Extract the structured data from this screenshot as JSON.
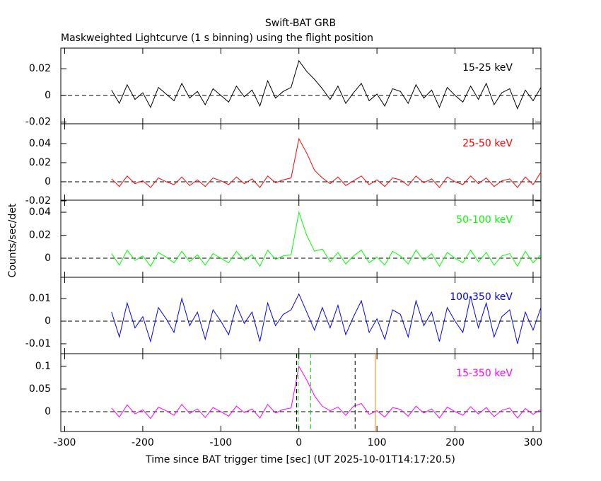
{
  "title": "Swift-BAT GRB",
  "subtitle": "Maskweighted Lightcurve (1 s binning) using the flight position",
  "x_label": "Time since BAT trigger time [sec] (UT 2025-10-01T14:17:20.5)",
  "y_label": "Counts/sec/det",
  "chart_data": [
    {
      "type": "line",
      "label": "15-25 keV",
      "color": "#000000",
      "x": [
        -240,
        -230,
        -220,
        -210,
        -200,
        -190,
        -180,
        -170,
        -160,
        -150,
        -140,
        -130,
        -120,
        -110,
        -100,
        -90,
        -80,
        -70,
        -60,
        -50,
        -40,
        -30,
        -20,
        -10,
        0,
        10,
        20,
        30,
        40,
        50,
        60,
        70,
        80,
        90,
        100,
        110,
        120,
        130,
        140,
        150,
        160,
        170,
        180,
        190,
        200,
        210,
        220,
        230,
        240,
        250,
        260,
        270,
        280,
        290,
        300,
        310
      ],
      "values": [
        0.004,
        -0.006,
        0.008,
        -0.003,
        0.002,
        -0.009,
        0.006,
        0.001,
        -0.004,
        0.009,
        -0.002,
        0.003,
        -0.007,
        0.005,
        0.0,
        -0.005,
        0.007,
        -0.001,
        0.004,
        -0.008,
        0.011,
        -0.002,
        0.003,
        0.006,
        0.026,
        0.018,
        0.012,
        0.005,
        -0.003,
        0.007,
        -0.006,
        0.002,
        0.009,
        -0.004,
        0.001,
        -0.008,
        0.005,
        0.003,
        -0.006,
        0.008,
        -0.002,
        0.004,
        -0.009,
        0.006,
        0.0,
        -0.005,
        0.007,
        -0.003,
        0.009,
        -0.007,
        0.002,
        0.005,
        -0.01,
        0.004,
        -0.004,
        0.006
      ],
      "xlim": [
        -305,
        310
      ],
      "xticks": [
        -300,
        -200,
        -100,
        0,
        100,
        200,
        300
      ],
      "ylim": [
        -0.0213,
        0.0355
      ],
      "yticks": [
        -0.02,
        0,
        0.02
      ],
      "hline": 0
    },
    {
      "type": "line",
      "label": "25-50 keV",
      "color": "#ff0000",
      "x": [
        -240,
        -230,
        -220,
        -210,
        -200,
        -190,
        -180,
        -170,
        -160,
        -150,
        -140,
        -130,
        -120,
        -110,
        -100,
        -90,
        -80,
        -70,
        -60,
        -50,
        -40,
        -30,
        -20,
        -10,
        0,
        10,
        20,
        30,
        40,
        50,
        60,
        70,
        80,
        90,
        100,
        110,
        120,
        130,
        140,
        150,
        160,
        170,
        180,
        190,
        200,
        210,
        220,
        230,
        240,
        250,
        260,
        270,
        280,
        290,
        300,
        310
      ],
      "values": [
        0.003,
        -0.005,
        0.006,
        -0.002,
        0.001,
        -0.006,
        0.004,
        0.0,
        -0.003,
        0.005,
        -0.004,
        0.002,
        -0.005,
        0.004,
        0.001,
        -0.003,
        0.005,
        -0.002,
        0.003,
        -0.006,
        0.006,
        -0.001,
        0.002,
        0.004,
        0.045,
        0.03,
        0.012,
        0.004,
        -0.002,
        0.005,
        -0.004,
        0.001,
        0.006,
        -0.003,
        0.002,
        -0.005,
        0.004,
        0.002,
        -0.004,
        0.006,
        -0.001,
        0.003,
        -0.006,
        0.005,
        0.0,
        -0.003,
        0.006,
        -0.002,
        0.004,
        -0.005,
        0.001,
        0.003,
        -0.006,
        0.005,
        -0.003,
        0.01
      ],
      "xlim": [
        -305,
        310
      ],
      "xticks": [
        -300,
        -200,
        -100,
        0,
        100,
        200,
        300
      ],
      "ylim": [
        -0.0193,
        0.0607
      ],
      "yticks": [
        -0.02,
        0,
        0.02,
        0.04
      ],
      "hline": 0
    },
    {
      "type": "line",
      "label": "50-100 keV",
      "color": "#00ff00",
      "x": [
        -240,
        -230,
        -220,
        -210,
        -200,
        -190,
        -180,
        -170,
        -160,
        -150,
        -140,
        -130,
        -120,
        -110,
        -100,
        -90,
        -80,
        -70,
        -60,
        -50,
        -40,
        -30,
        -20,
        -10,
        0,
        10,
        20,
        30,
        40,
        50,
        60,
        70,
        80,
        90,
        100,
        110,
        120,
        130,
        140,
        150,
        160,
        170,
        180,
        190,
        200,
        210,
        220,
        230,
        240,
        250,
        260,
        270,
        280,
        290,
        300,
        310
      ],
      "values": [
        0.004,
        -0.006,
        0.007,
        -0.002,
        0.002,
        -0.007,
        0.005,
        0.001,
        -0.004,
        0.006,
        -0.003,
        0.003,
        -0.006,
        0.004,
        0.0,
        -0.004,
        0.006,
        -0.002,
        0.003,
        -0.007,
        0.007,
        -0.001,
        0.002,
        0.003,
        0.04,
        0.02,
        0.006,
        0.008,
        -0.003,
        0.005,
        -0.005,
        0.002,
        0.007,
        -0.004,
        0.001,
        -0.006,
        0.006,
        0.002,
        -0.005,
        0.007,
        -0.002,
        0.004,
        -0.007,
        0.005,
        0.0,
        -0.004,
        0.007,
        -0.003,
        0.005,
        -0.006,
        0.002,
        0.004,
        -0.007,
        0.006,
        -0.004,
        0.003
      ],
      "xlim": [
        -305,
        310
      ],
      "xticks": [
        -300,
        -200,
        -100,
        0,
        100,
        200,
        300
      ],
      "ylim": [
        -0.0166,
        0.0505
      ],
      "yticks": [
        0,
        0.02,
        0.04
      ],
      "hline": 0
    },
    {
      "type": "line",
      "label": "100-350 keV",
      "color": "#0000ff",
      "x": [
        -240,
        -230,
        -220,
        -210,
        -200,
        -190,
        -180,
        -170,
        -160,
        -150,
        -140,
        -130,
        -120,
        -110,
        -100,
        -90,
        -80,
        -70,
        -60,
        -50,
        -40,
        -30,
        -20,
        -10,
        0,
        10,
        20,
        30,
        40,
        50,
        60,
        70,
        80,
        90,
        100,
        110,
        120,
        130,
        140,
        150,
        160,
        170,
        180,
        190,
        200,
        210,
        220,
        230,
        240,
        250,
        260,
        270,
        280,
        290,
        300,
        310
      ],
      "values": [
        0.004,
        -0.007,
        0.008,
        -0.003,
        0.002,
        -0.009,
        0.006,
        0.001,
        -0.005,
        0.01,
        -0.002,
        0.004,
        -0.008,
        0.005,
        0.0,
        -0.006,
        0.007,
        -0.001,
        0.004,
        -0.009,
        0.008,
        -0.002,
        0.003,
        0.005,
        0.012,
        0.004,
        -0.004,
        0.006,
        -0.003,
        0.007,
        -0.006,
        0.002,
        0.009,
        -0.005,
        0.001,
        -0.008,
        0.005,
        0.003,
        -0.007,
        0.009,
        -0.002,
        0.004,
        -0.009,
        0.006,
        0.0,
        -0.005,
        0.011,
        -0.003,
        0.008,
        -0.007,
        0.002,
        0.005,
        -0.01,
        0.004,
        -0.004,
        0.006
      ],
      "xlim": [
        -305,
        310
      ],
      "xticks": [
        -300,
        -200,
        -100,
        0,
        100,
        200,
        300
      ],
      "ylim": [
        -0.0144,
        0.0194
      ],
      "yticks": [
        -0.01,
        0,
        0.01
      ],
      "hline": 0
    },
    {
      "type": "line",
      "label": "15-350 keV",
      "color": "#ff00ff",
      "x": [
        -240,
        -230,
        -220,
        -210,
        -200,
        -190,
        -180,
        -170,
        -160,
        -150,
        -140,
        -130,
        -120,
        -110,
        -100,
        -90,
        -80,
        -70,
        -60,
        -50,
        -40,
        -30,
        -20,
        -10,
        0,
        10,
        20,
        30,
        40,
        50,
        60,
        70,
        80,
        90,
        100,
        110,
        120,
        130,
        140,
        150,
        160,
        170,
        180,
        190,
        200,
        210,
        220,
        230,
        240,
        250,
        260,
        270,
        280,
        290,
        300,
        310
      ],
      "values": [
        0.008,
        -0.012,
        0.015,
        -0.005,
        0.004,
        -0.015,
        0.01,
        0.002,
        -0.008,
        0.016,
        -0.004,
        0.006,
        -0.013,
        0.009,
        0.0,
        -0.01,
        0.012,
        -0.002,
        0.006,
        -0.014,
        0.016,
        -0.003,
        0.005,
        0.008,
        0.1,
        0.07,
        0.035,
        0.012,
        0.002,
        0.01,
        -0.008,
        0.012,
        0.018,
        -0.006,
        0.002,
        -0.012,
        0.009,
        0.005,
        -0.01,
        0.012,
        -0.003,
        0.006,
        -0.014,
        0.01,
        0.0,
        -0.008,
        0.011,
        -0.005,
        0.009,
        -0.011,
        0.003,
        0.008,
        -0.014,
        0.007,
        -0.006,
        0.005
      ],
      "xlim": [
        -305,
        310
      ],
      "xticks": [
        -300,
        -200,
        -100,
        0,
        100,
        200,
        300
      ],
      "ylim": [
        -0.0438,
        0.128
      ],
      "yticks": [
        0,
        0.05,
        0.1
      ],
      "hline": 0,
      "vlines": [
        {
          "x": -3,
          "color": "#000000",
          "dashed": true
        },
        {
          "x": 72,
          "color": "#000000",
          "dashed": true
        },
        {
          "x": -1,
          "color": "#00cc00",
          "dashed": true
        },
        {
          "x": 15,
          "color": "#00cc00",
          "dashed": true
        },
        {
          "x": 98,
          "color": "#ff8000",
          "dashed": false
        }
      ]
    }
  ]
}
